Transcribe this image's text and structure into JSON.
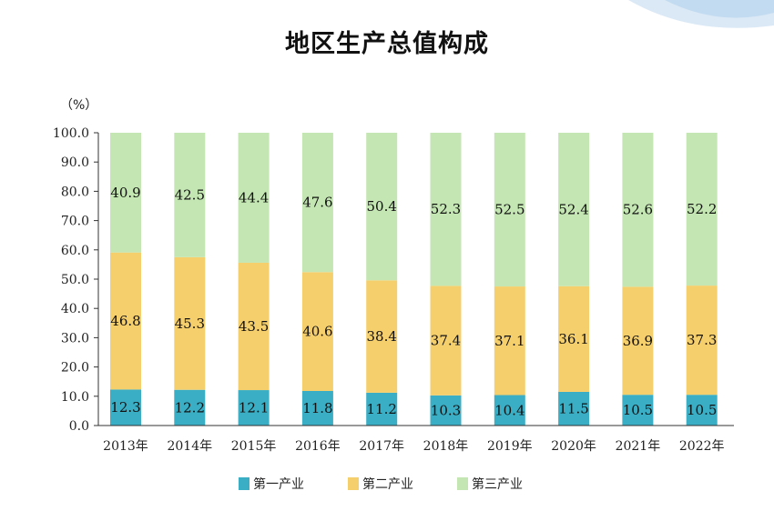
{
  "title": "地区生产总值构成",
  "unit_label": "（%）",
  "chart_data": {
    "type": "bar",
    "stacked": true,
    "categories": [
      "2013年",
      "2014年",
      "2015年",
      "2016年",
      "2017年",
      "2018年",
      "2019年",
      "2020年",
      "2021年",
      "2022年"
    ],
    "series": [
      {
        "name": "第一产业",
        "color": "#3aaec4",
        "values": [
          12.3,
          12.2,
          12.1,
          11.8,
          11.2,
          10.3,
          10.4,
          11.5,
          10.5,
          10.5
        ]
      },
      {
        "name": "第二产业",
        "color": "#f6cf6d",
        "values": [
          46.8,
          45.3,
          43.5,
          40.6,
          38.4,
          37.4,
          37.1,
          36.1,
          36.9,
          37.3
        ]
      },
      {
        "name": "第三产业",
        "color": "#c4e6b3",
        "values": [
          40.9,
          42.5,
          44.4,
          47.6,
          50.4,
          52.3,
          52.5,
          52.4,
          52.6,
          52.2
        ]
      }
    ],
    "yticks": [
      "0.0",
      "10.0",
      "20.0",
      "30.0",
      "40.0",
      "50.0",
      "60.0",
      "70.0",
      "80.0",
      "90.0",
      "100.0"
    ],
    "ylim": [
      0,
      100
    ],
    "grid": false,
    "legend_position": "bottom"
  }
}
